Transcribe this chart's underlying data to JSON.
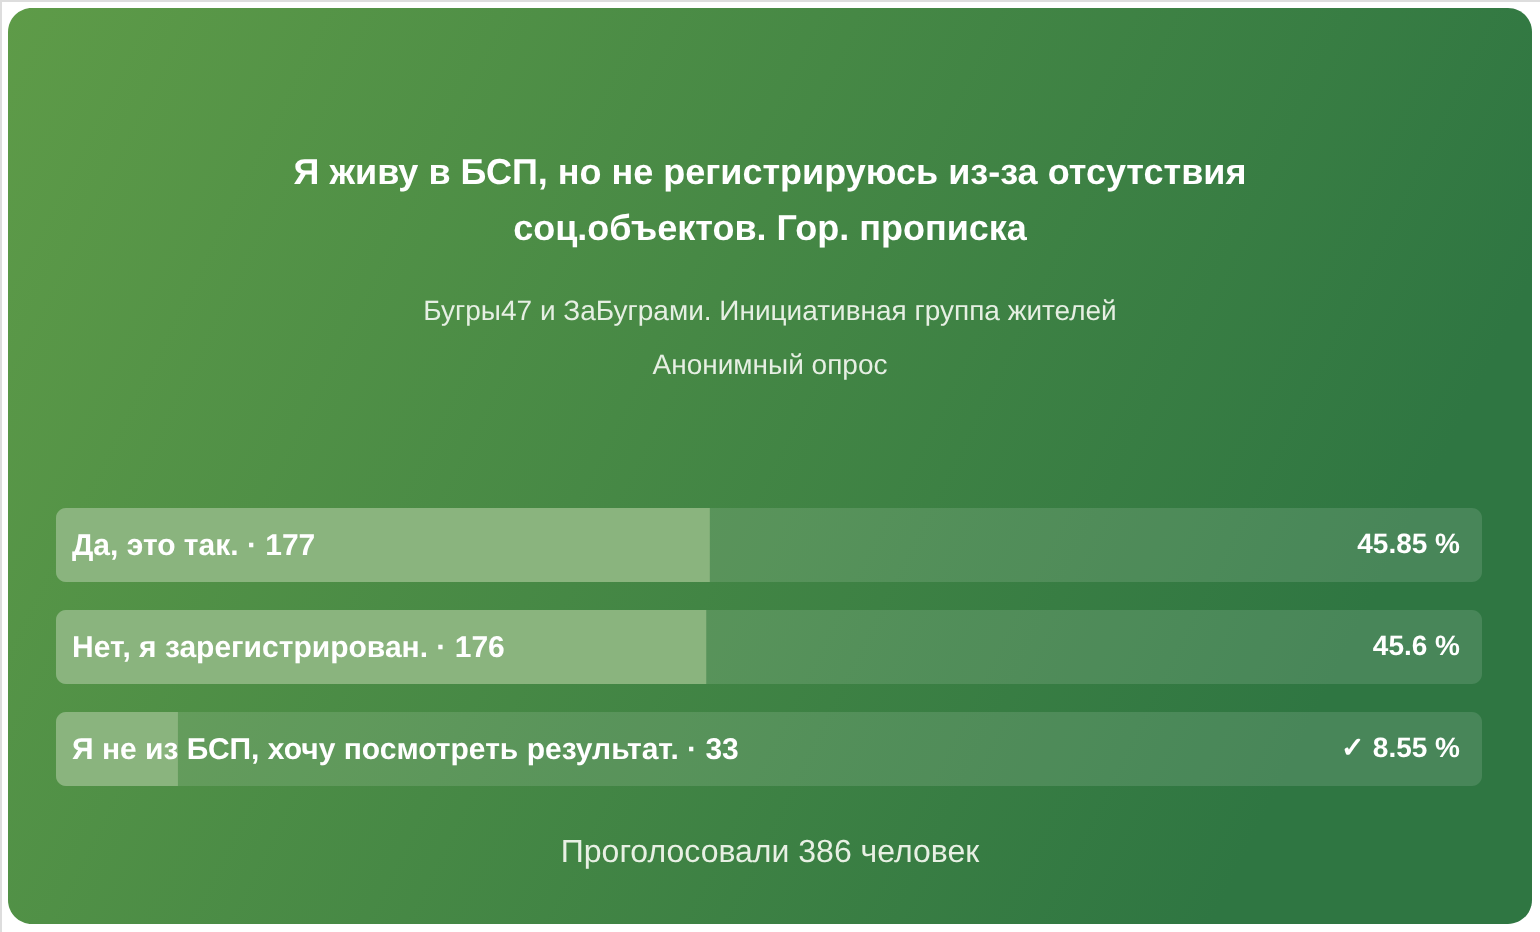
{
  "chart_data": {
    "type": "bar",
    "orientation": "horizontal",
    "title": "Я живу в БСП, но не регистрируюсь из-за отсутствия соц.объектов. Гор. прописка",
    "subtitle": "Бугры47 и ЗаБуграми. Инициативная группа жителей Анонимный опрос",
    "categories": [
      "Да, это так. · 177",
      "Нет, я зарегистрирован. · 176",
      "Я не из БСП, хочу посмотреть результат. · 33"
    ],
    "values": [
      45.85,
      45.6,
      8.55
    ],
    "color": "#8ab47e",
    "value_labels": [
      "45.85 %",
      "45.6 %",
      "✓ 8.55 %"
    ],
    "xlim": [
      0,
      100
    ],
    "tick_labels": "y",
    "annotations": [
      "Проголосовали 386 человек"
    ]
  }
}
